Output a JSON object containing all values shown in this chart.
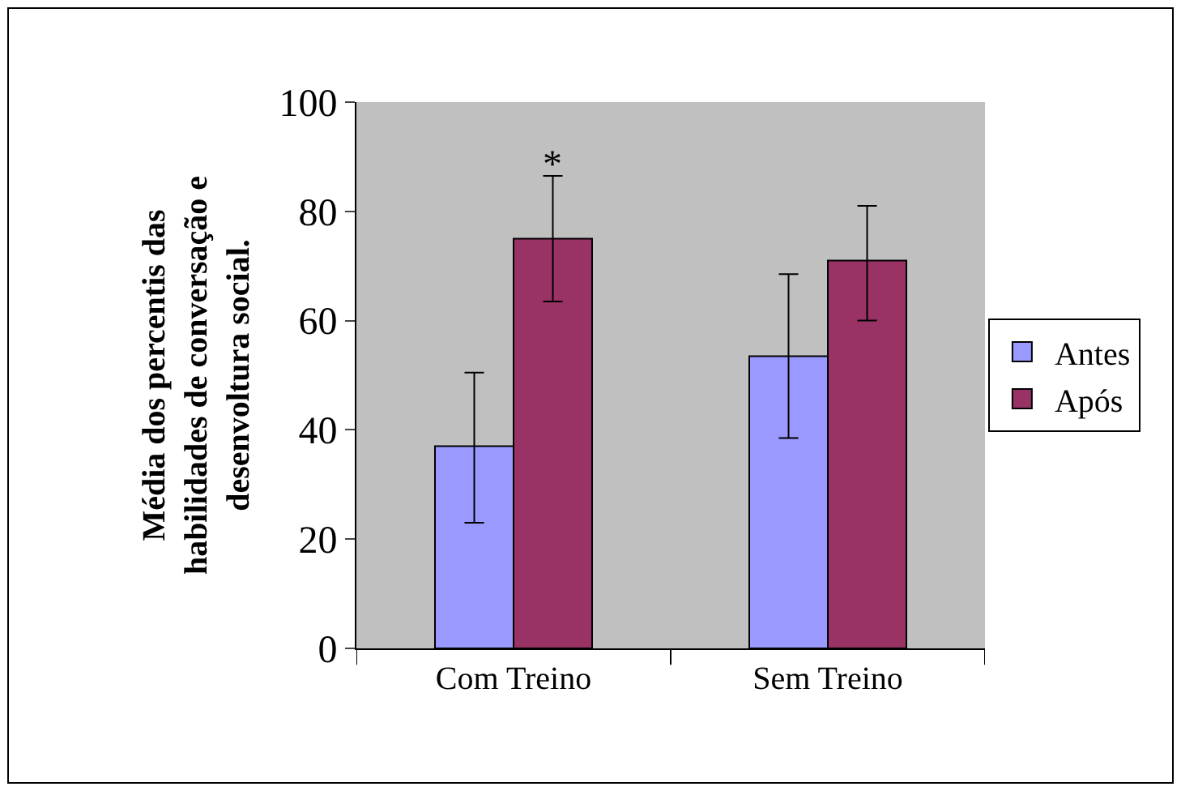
{
  "chart_data": {
    "type": "bar",
    "ylabel": "Média dos percentis das\nhabilidades de conversação e\ndesenvoltura social.",
    "categories": [
      "Com Treino",
      "Sem Treino"
    ],
    "series": [
      {
        "name": "Antes",
        "color": "#9999ff",
        "values": [
          37,
          53.5
        ],
        "errors": [
          [
            23,
            50.5
          ],
          [
            38.5,
            68.5
          ]
        ]
      },
      {
        "name": "Após",
        "color": "#993366",
        "values": [
          75,
          71
        ],
        "errors": [
          [
            63.5,
            86.5
          ],
          [
            60,
            81
          ]
        ]
      }
    ],
    "ylim": [
      0,
      100
    ],
    "yticks": [
      0,
      20,
      40,
      60,
      80,
      100
    ],
    "grid": false,
    "legend": "right",
    "annotations": [
      {
        "text": "*",
        "x": "Com Treino",
        "y": 75
      }
    ]
  }
}
